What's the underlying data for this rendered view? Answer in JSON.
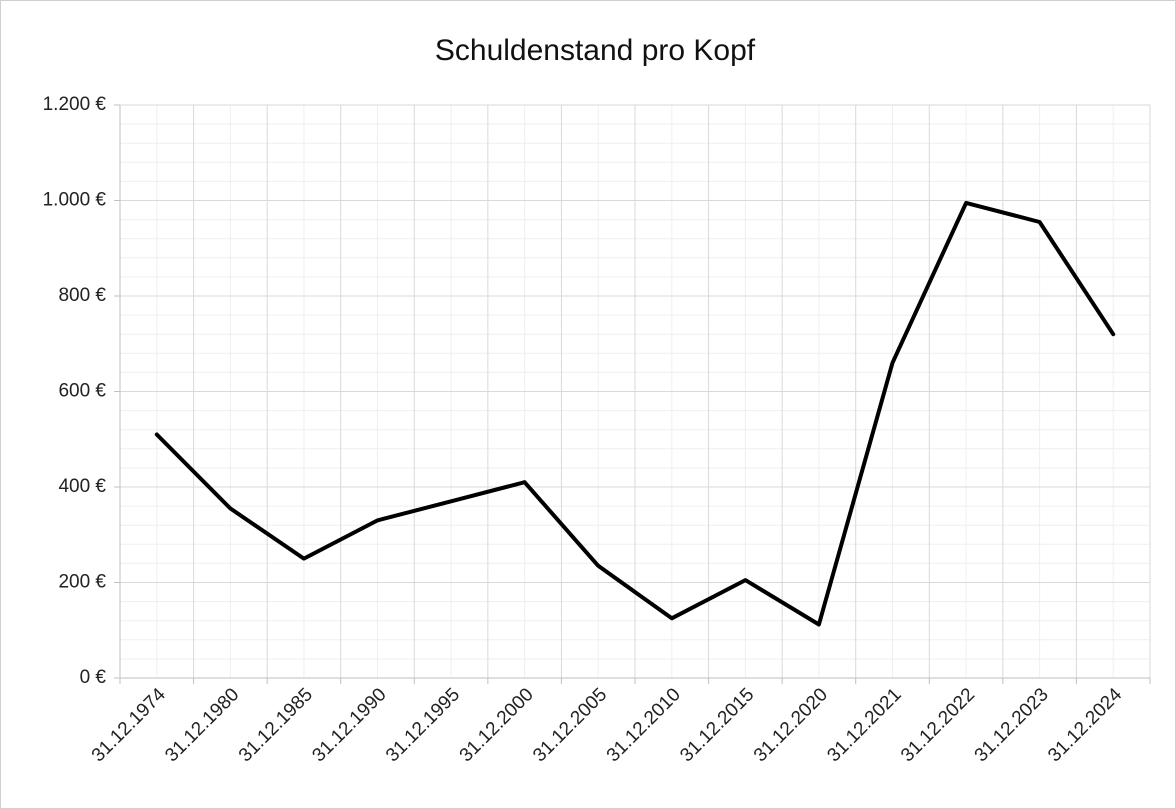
{
  "chart_data": {
    "type": "line",
    "title": "Schuldenstand  pro Kopf",
    "categories": [
      "31.12.1974",
      "31.12.1980",
      "31.12.1985",
      "31.12.1990",
      "31.12.1995",
      "31.12.2000",
      "31.12.2005",
      "31.12.2010",
      "31.12.2015",
      "31.12.2020",
      "31.12.2021",
      "31.12.2022",
      "31.12.2023",
      "31.12.2024"
    ],
    "values": [
      510,
      355,
      250,
      330,
      370,
      410,
      235,
      125,
      205,
      112,
      660,
      995,
      955,
      720
    ],
    "color": "#000000",
    "ylim": [
      0,
      1200
    ],
    "yticks": [
      {
        "value": 0,
        "label": "0 €"
      },
      {
        "value": 200,
        "label": "200 €"
      },
      {
        "value": 400,
        "label": "400 €"
      },
      {
        "value": 600,
        "label": "600 €"
      },
      {
        "value": 800,
        "label": "800 €"
      },
      {
        "value": 1000,
        "label": "1.000 €"
      },
      {
        "value": 1200,
        "label": "1.200 €"
      }
    ],
    "grid": true
  }
}
